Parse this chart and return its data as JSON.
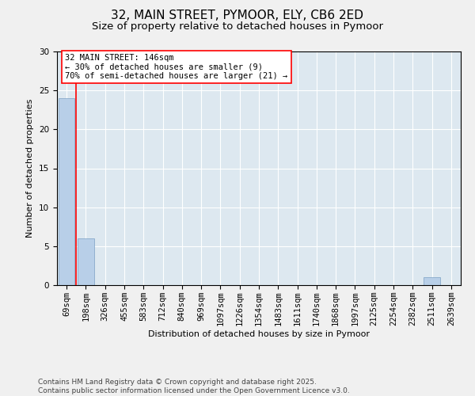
{
  "title_line1": "32, MAIN STREET, PYMOOR, ELY, CB6 2ED",
  "title_line2": "Size of property relative to detached houses in Pymoor",
  "xlabel": "Distribution of detached houses by size in Pymoor",
  "ylabel": "Number of detached properties",
  "bins": [
    "69sqm",
    "198sqm",
    "326sqm",
    "455sqm",
    "583sqm",
    "712sqm",
    "840sqm",
    "969sqm",
    "1097sqm",
    "1226sqm",
    "1354sqm",
    "1483sqm",
    "1611sqm",
    "1740sqm",
    "1868sqm",
    "1997sqm",
    "2125sqm",
    "2254sqm",
    "2382sqm",
    "2511sqm",
    "2639sqm"
  ],
  "values": [
    24,
    6,
    0,
    0,
    0,
    0,
    0,
    0,
    0,
    0,
    0,
    0,
    0,
    0,
    0,
    0,
    0,
    0,
    0,
    1,
    0
  ],
  "bar_color": "#b8cfe8",
  "bar_edgecolor": "#7aa0c4",
  "vline_color": "red",
  "vline_position": 0.5,
  "annotation_text": "32 MAIN STREET: 146sqm\n← 30% of detached houses are smaller (9)\n70% of semi-detached houses are larger (21) →",
  "annotation_box_facecolor": "white",
  "annotation_box_edgecolor": "red",
  "ylim": [
    0,
    30
  ],
  "yticks": [
    0,
    5,
    10,
    15,
    20,
    25,
    30
  ],
  "bg_color": "#dde8f0",
  "fig_color": "#f0f0f0",
  "title_fontsize": 11,
  "subtitle_fontsize": 9.5,
  "axis_label_fontsize": 8,
  "tick_fontsize": 7.5,
  "annotation_fontsize": 7.5,
  "footer_fontsize": 6.5,
  "footer": "Contains HM Land Registry data © Crown copyright and database right 2025.\nContains public sector information licensed under the Open Government Licence v3.0."
}
